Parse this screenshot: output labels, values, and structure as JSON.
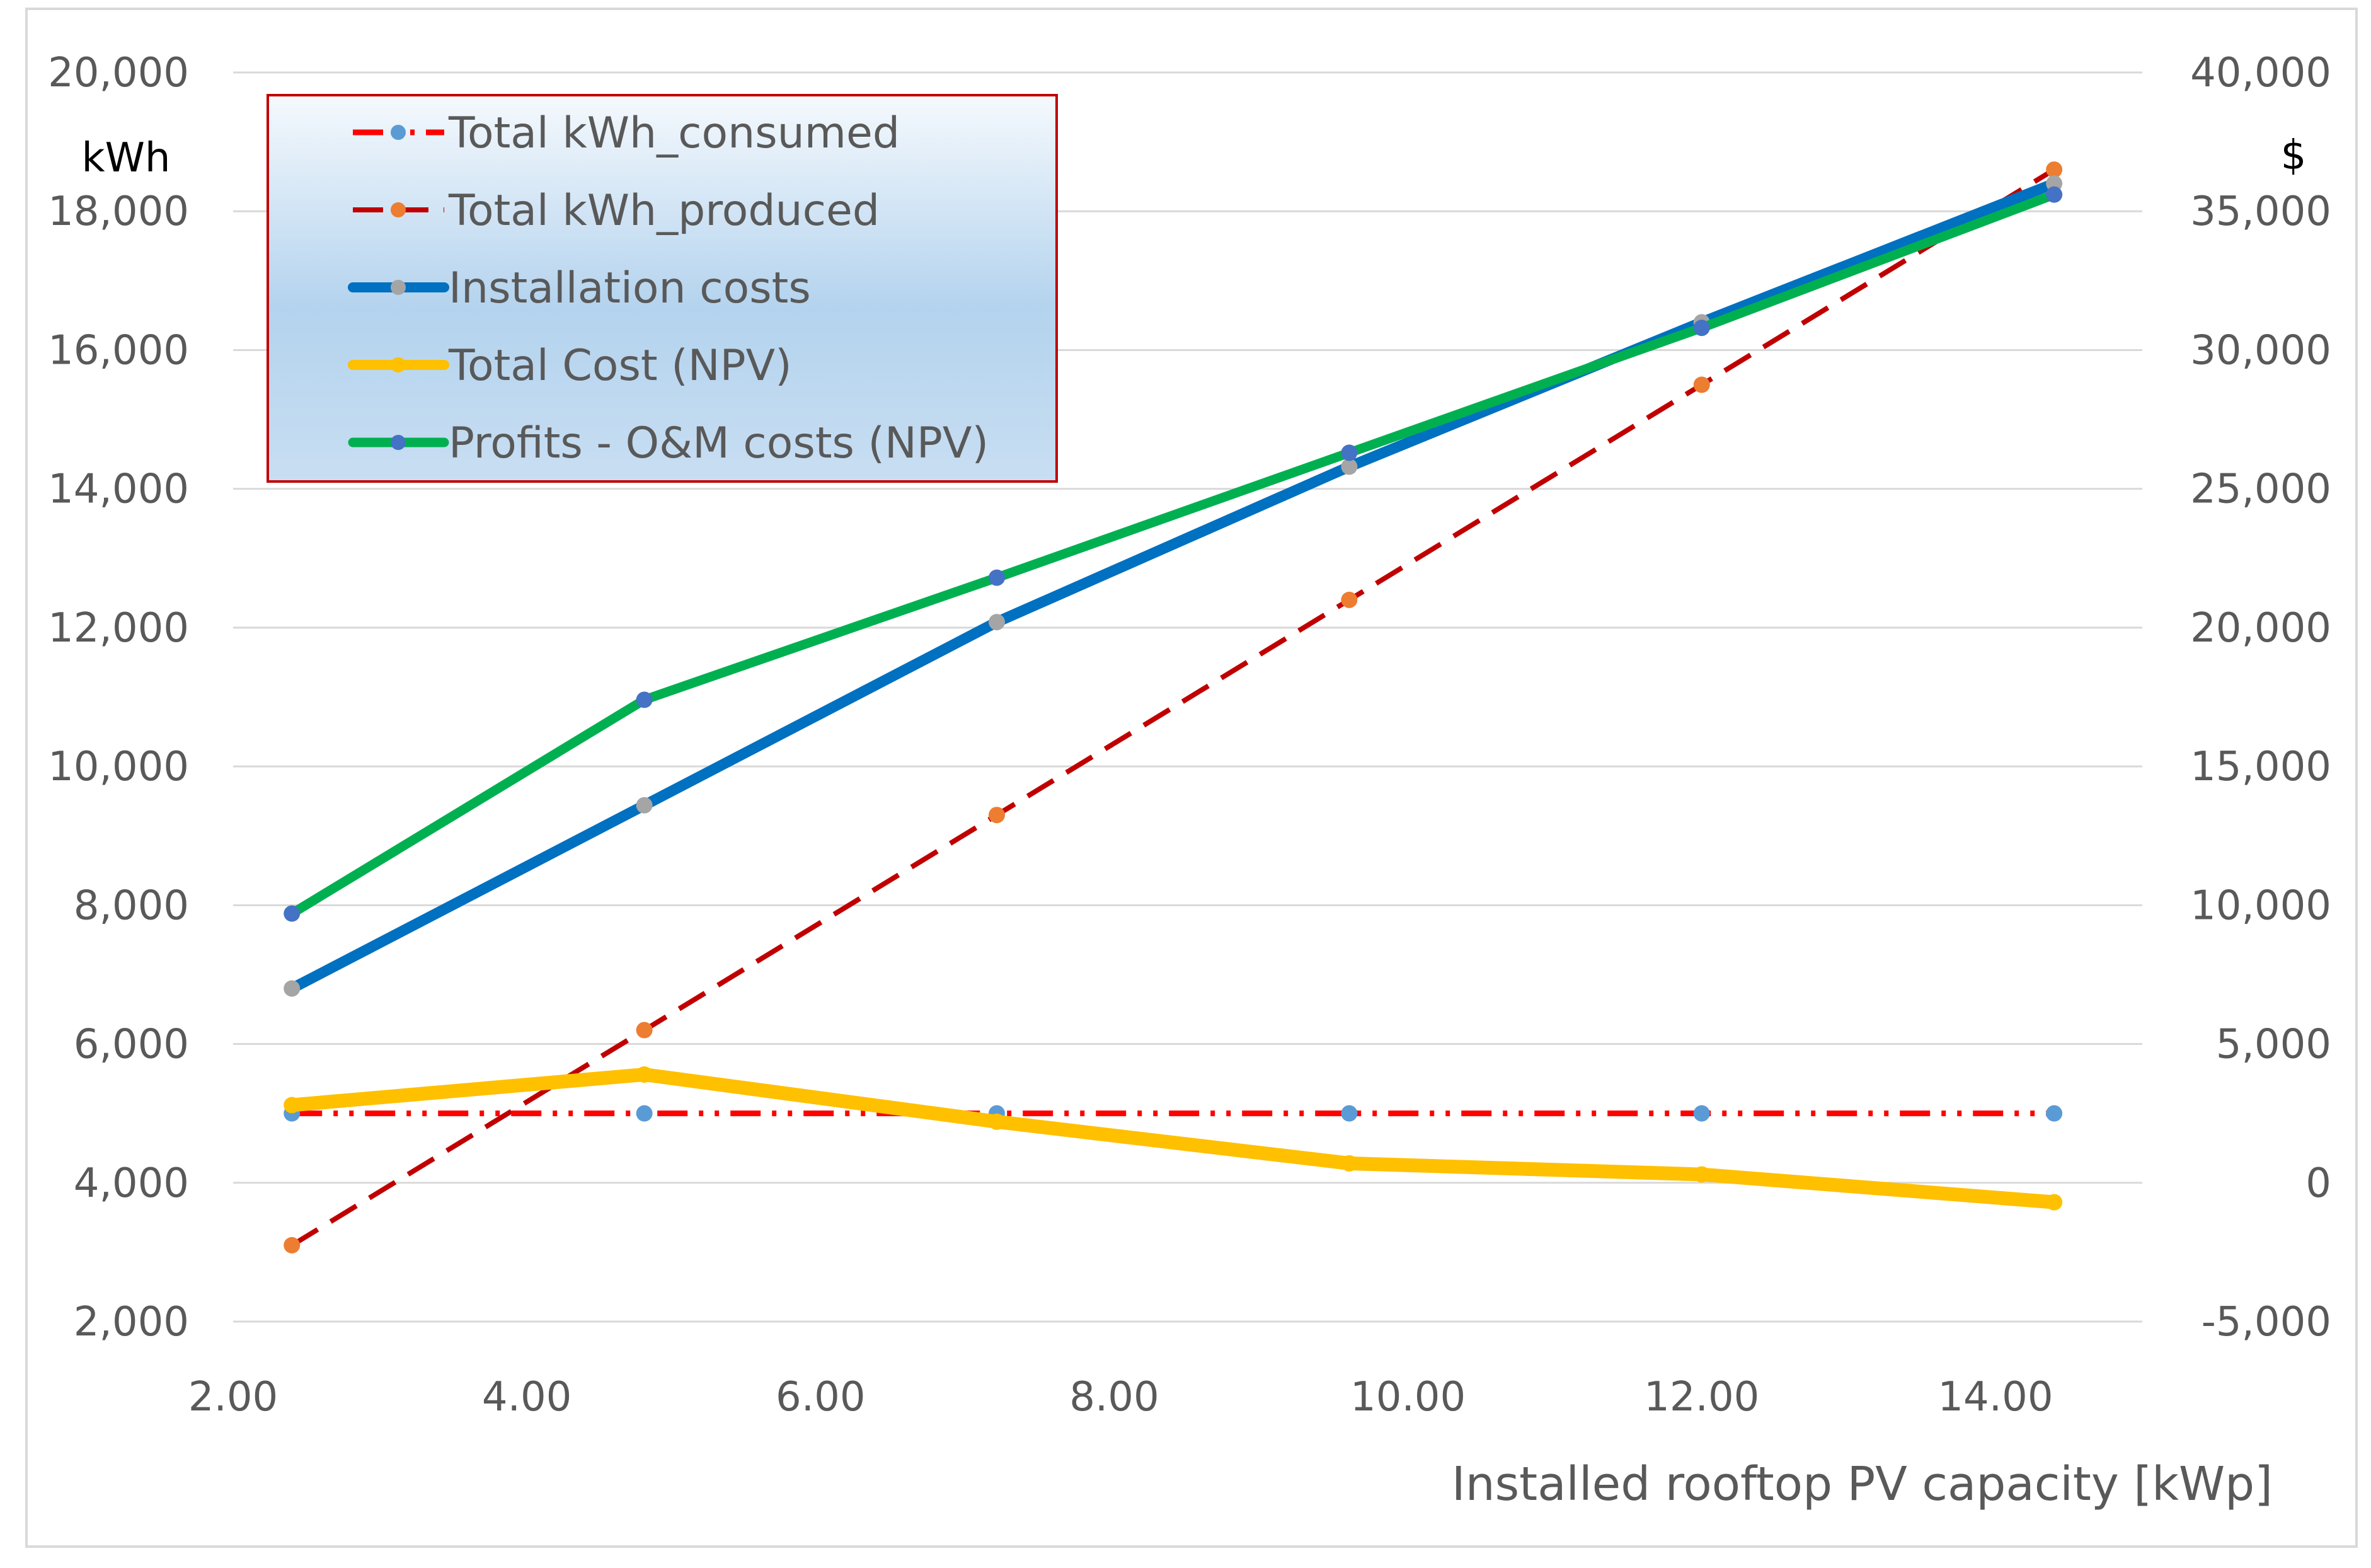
{
  "chart_data": {
    "type": "line",
    "title": "",
    "xlabel": "Installed rooftop PV capacity [kWp]",
    "ylabel_left": "kWh",
    "ylabel_right": "$",
    "xlim": [
      2,
      15
    ],
    "x_ticks": [
      2,
      4,
      6,
      8,
      10,
      12,
      14
    ],
    "x_tick_labels": [
      "2.00",
      "4.00",
      "6.00",
      "8.00",
      "10.00",
      "12.00",
      "14.00"
    ],
    "ylim_left": [
      2000,
      20000
    ],
    "y_ticks_left": [
      2000,
      4000,
      6000,
      8000,
      10000,
      12000,
      14000,
      16000,
      18000,
      20000
    ],
    "y_tick_labels_left": [
      "2,000",
      "4,000",
      "6,000",
      "8,000",
      "10,000",
      "12,000",
      "14,000",
      "16,000",
      "18,000",
      "20,000"
    ],
    "ylim_right": [
      -5000,
      40000
    ],
    "y_ticks_right": [
      -5000,
      0,
      5000,
      10000,
      15000,
      20000,
      25000,
      30000,
      35000,
      40000
    ],
    "y_tick_labels_right": [
      "-5,000",
      "0",
      "5,000",
      "10,000",
      "15,000",
      "20,000",
      "25,000",
      "30,000",
      "35,000",
      "40,000"
    ],
    "grid": true,
    "legend_position": "top-left",
    "x": [
      2.4,
      4.8,
      7.2,
      9.6,
      12.0,
      14.4
    ],
    "series": [
      {
        "name": "Total kWh_consumed",
        "axis": "left",
        "values": [
          5000,
          5000,
          5000,
          5000,
          5000,
          5000
        ],
        "line_color": "#FF0000",
        "marker_color": "#5B9BD5",
        "style": "dash-dot-dot"
      },
      {
        "name": "Total kWh_produced",
        "axis": "left",
        "values": [
          3100,
          6200,
          9300,
          12400,
          15500,
          18600
        ],
        "line_color": "#C00000",
        "marker_color": "#ED7D31",
        "style": "dash"
      },
      {
        "name": "Installation costs",
        "axis": "right",
        "values": [
          7000,
          13600,
          20200,
          25800,
          31000,
          36000
        ],
        "line_color": "#0070C0",
        "marker_color": "#A5A5A5",
        "style": "solid"
      },
      {
        "name": "Total Cost (NPV)",
        "axis": "right",
        "values": [
          2800,
          3900,
          2200,
          700,
          300,
          -700
        ],
        "line_color": "#FFC000",
        "marker_color": "#FFC000",
        "style": "solid"
      },
      {
        "name": "Profits - O&M costs (NPV)",
        "axis": "right",
        "values": [
          9700,
          17400,
          21800,
          26300,
          30800,
          35600
        ],
        "line_color": "#00B050",
        "marker_color": "#4472C4",
        "style": "solid"
      }
    ]
  }
}
